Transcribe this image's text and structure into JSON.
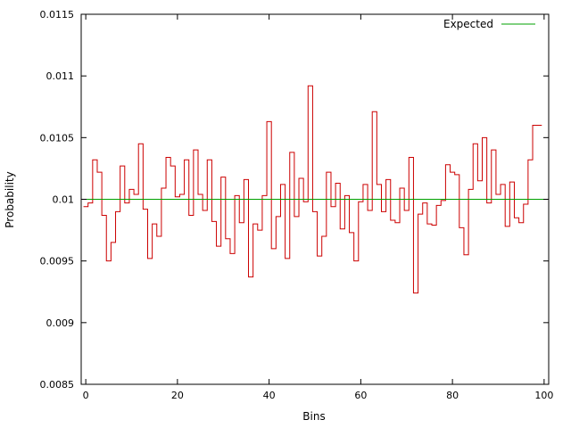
{
  "chart_data": {
    "type": "line",
    "title": "",
    "xlabel": "Bins",
    "ylabel": "Probability",
    "xlim": [
      -1,
      101
    ],
    "ylim": [
      0.0085,
      0.0115
    ],
    "xticks": [
      0,
      20,
      40,
      60,
      80,
      100
    ],
    "xtick_labels": [
      "0",
      "20",
      "40",
      "60",
      "80",
      "100"
    ],
    "yticks": [
      0.0085,
      0.009,
      0.0095,
      0.01,
      0.0105,
      0.011,
      0.0115
    ],
    "ytick_labels": [
      "0.0085",
      "0.009",
      "0.0095",
      "0.01",
      "0.0105",
      "0.011",
      "0.0115"
    ],
    "grid": false,
    "legend_position": "top-right",
    "series": [
      {
        "style": "step",
        "color": "#cc0000",
        "x": [
          0,
          1,
          2,
          3,
          4,
          5,
          6,
          7,
          8,
          9,
          10,
          11,
          12,
          13,
          14,
          15,
          16,
          17,
          18,
          19,
          20,
          21,
          22,
          23,
          24,
          25,
          26,
          27,
          28,
          29,
          30,
          31,
          32,
          33,
          34,
          35,
          36,
          37,
          38,
          39,
          40,
          41,
          42,
          43,
          44,
          45,
          46,
          47,
          48,
          49,
          50,
          51,
          52,
          53,
          54,
          55,
          56,
          57,
          58,
          59,
          60,
          61,
          62,
          63,
          64,
          65,
          66,
          67,
          68,
          69,
          70,
          71,
          72,
          73,
          74,
          75,
          76,
          77,
          78,
          79,
          80,
          81,
          82,
          83,
          84,
          85,
          86,
          87,
          88,
          89,
          90,
          91,
          92,
          93,
          94,
          95,
          96,
          97,
          98,
          99
        ],
        "values": [
          0.00994,
          0.00997,
          0.01032,
          0.01022,
          0.00987,
          0.0095,
          0.00965,
          0.0099,
          0.01027,
          0.00997,
          0.01008,
          0.01004,
          0.01045,
          0.00992,
          0.00952,
          0.0098,
          0.0097,
          0.01009,
          0.01034,
          0.01027,
          0.01002,
          0.01004,
          0.01032,
          0.00987,
          0.0104,
          0.01004,
          0.00991,
          0.01032,
          0.00982,
          0.00962,
          0.01018,
          0.00968,
          0.00956,
          0.01003,
          0.00981,
          0.01016,
          0.00937,
          0.0098,
          0.00975,
          0.01003,
          0.01063,
          0.0096,
          0.00986,
          0.01012,
          0.00952,
          0.01038,
          0.00986,
          0.01017,
          0.00998,
          0.01092,
          0.0099,
          0.00954,
          0.0097,
          0.01022,
          0.00994,
          0.01013,
          0.00976,
          0.01003,
          0.00973,
          0.0095,
          0.00998,
          0.01012,
          0.00991,
          0.01071,
          0.01012,
          0.0099,
          0.01016,
          0.00983,
          0.00981,
          0.01009,
          0.00991,
          0.01034,
          0.00924,
          0.00988,
          0.00997,
          0.0098,
          0.00979,
          0.00995,
          0.00999,
          0.01028,
          0.01022,
          0.0102,
          0.00977,
          0.00955,
          0.01008,
          0.01045,
          0.01015,
          0.0105,
          0.00997,
          0.0104,
          0.01004,
          0.01012,
          0.00978,
          0.01014,
          0.00985,
          0.00981,
          0.00996,
          0.01032,
          0.0106,
          0.0106
        ]
      },
      {
        "name": "Expected",
        "style": "line",
        "color": "#00a000",
        "x": [
          -1,
          101
        ],
        "values": [
          0.01,
          0.01
        ]
      }
    ]
  }
}
